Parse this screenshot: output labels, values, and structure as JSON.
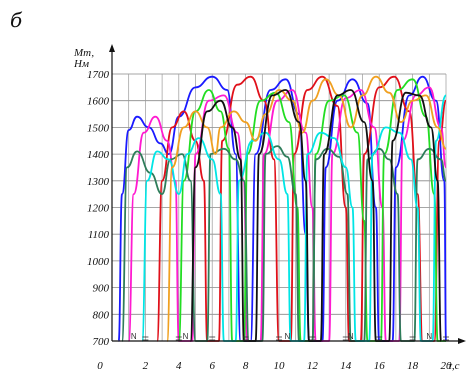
{
  "figure": {
    "letter": "б"
  },
  "chart_data": {
    "type": "line",
    "ylabel_line1": "Mт,",
    "ylabel_line2": "Нм",
    "xlabel": "τ,c",
    "xlim": [
      0,
      20
    ],
    "ylim": [
      700,
      1700
    ],
    "x_ticks": [
      0,
      2,
      4,
      6,
      8,
      10,
      12,
      14,
      16,
      18,
      20
    ],
    "x_tick_labels": [
      "0",
      "2",
      "4",
      "6",
      "8",
      "10",
      "12",
      "14",
      "16",
      "18",
      "20"
    ],
    "y_ticks": [
      700,
      800,
      900,
      1000,
      1100,
      1200,
      1300,
      1400,
      1500,
      1600,
      1700
    ],
    "y_tick_labels": [
      "700",
      "800",
      "900",
      "1000",
      "1100",
      "1200",
      "1300",
      "1400",
      "1500",
      "1600",
      "1700"
    ],
    "grid": true,
    "series_colors": [
      "#1a1aff",
      "#e0101a",
      "#ff1ad0",
      "#22dd22",
      "#2e7d5a",
      "#00e5e5",
      "#f0a020",
      "#111111"
    ],
    "n_markers": [
      {
        "label": "N",
        "x": 1.3
      },
      {
        "label": "N",
        "x": 4.4
      },
      {
        "label": "N",
        "x": 10.5
      },
      {
        "label": "N",
        "x": 14.3
      },
      {
        "label": "N",
        "x": 19.0
      }
    ],
    "series": [
      {
        "color": "#1a1aff",
        "points": [
          [
            0.4,
            700
          ],
          [
            0.6,
            1250
          ],
          [
            1.0,
            1490
          ],
          [
            1.5,
            1540
          ],
          [
            2.2,
            1500
          ],
          [
            2.9,
            1440
          ],
          [
            3.4,
            1400
          ],
          [
            4.0,
            1540
          ],
          [
            5.0,
            1650
          ],
          [
            6.0,
            1690
          ],
          [
            6.9,
            1640
          ],
          [
            7.4,
            1400
          ],
          [
            7.7,
            700
          ],
          [
            8.3,
            700
          ],
          [
            8.6,
            1400
          ],
          [
            9.5,
            1640
          ],
          [
            10.4,
            1680
          ],
          [
            11.2,
            1550
          ],
          [
            11.6,
            1100
          ],
          [
            11.8,
            700
          ],
          [
            12.6,
            700
          ],
          [
            12.8,
            1350
          ],
          [
            13.5,
            1600
          ],
          [
            14.4,
            1680
          ],
          [
            15.3,
            1590
          ],
          [
            15.8,
            1200
          ],
          [
            16.0,
            700
          ],
          [
            16.8,
            700
          ],
          [
            17.0,
            1350
          ],
          [
            17.8,
            1620
          ],
          [
            18.6,
            1690
          ],
          [
            19.4,
            1600
          ],
          [
            19.9,
            1300
          ],
          [
            20.0,
            700
          ]
        ]
      },
      {
        "color": "#e0101a",
        "points": [
          [
            2.7,
            700
          ],
          [
            3.0,
            1300
          ],
          [
            3.6,
            1500
          ],
          [
            4.3,
            1560
          ],
          [
            5.0,
            1450
          ],
          [
            5.5,
            1300
          ],
          [
            5.7,
            700
          ],
          [
            6.4,
            700
          ],
          [
            6.6,
            1450
          ],
          [
            7.5,
            1660
          ],
          [
            8.3,
            1690
          ],
          [
            9.1,
            1600
          ],
          [
            9.7,
            1380
          ],
          [
            10.0,
            700
          ],
          [
            10.7,
            700
          ],
          [
            10.9,
            1400
          ],
          [
            11.7,
            1640
          ],
          [
            12.6,
            1690
          ],
          [
            13.5,
            1580
          ],
          [
            14.0,
            1200
          ],
          [
            14.2,
            700
          ],
          [
            14.9,
            700
          ],
          [
            15.1,
            1400
          ],
          [
            16.0,
            1650
          ],
          [
            16.9,
            1690
          ],
          [
            17.8,
            1560
          ],
          [
            18.3,
            1250
          ],
          [
            18.6,
            700
          ],
          [
            19.3,
            700
          ],
          [
            19.6,
            1450
          ],
          [
            20.0,
            1600
          ]
        ]
      },
      {
        "color": "#ff1ad0",
        "points": [
          [
            1.0,
            700
          ],
          [
            1.3,
            1250
          ],
          [
            1.9,
            1480
          ],
          [
            2.6,
            1540
          ],
          [
            3.3,
            1450
          ],
          [
            3.8,
            1300
          ],
          [
            4.0,
            700
          ],
          [
            4.8,
            700
          ],
          [
            5.0,
            1400
          ],
          [
            5.8,
            1600
          ],
          [
            6.7,
            1620
          ],
          [
            7.5,
            1480
          ],
          [
            7.9,
            1300
          ],
          [
            8.1,
            700
          ],
          [
            8.9,
            700
          ],
          [
            9.1,
            1400
          ],
          [
            9.9,
            1600
          ],
          [
            10.8,
            1640
          ],
          [
            11.6,
            1480
          ],
          [
            12.0,
            1200
          ],
          [
            12.2,
            700
          ],
          [
            13.0,
            700
          ],
          [
            13.2,
            1400
          ],
          [
            14.0,
            1610
          ],
          [
            14.9,
            1640
          ],
          [
            15.7,
            1500
          ],
          [
            16.2,
            1200
          ],
          [
            16.4,
            700
          ],
          [
            17.2,
            700
          ],
          [
            17.4,
            1450
          ],
          [
            18.2,
            1620
          ],
          [
            19.0,
            1650
          ],
          [
            19.7,
            1500
          ],
          [
            20.0,
            1350
          ]
        ]
      },
      {
        "color": "#22dd22",
        "points": [
          [
            4.0,
            700
          ],
          [
            4.3,
            1300
          ],
          [
            5.0,
            1560
          ],
          [
            5.8,
            1640
          ],
          [
            6.5,
            1560
          ],
          [
            7.0,
            1420
          ],
          [
            7.2,
            700
          ],
          [
            7.9,
            700
          ],
          [
            8.1,
            1400
          ],
          [
            8.9,
            1600
          ],
          [
            9.8,
            1630
          ],
          [
            10.6,
            1520
          ],
          [
            11.1,
            1200
          ],
          [
            11.3,
            700
          ],
          [
            12.0,
            700
          ],
          [
            12.2,
            1400
          ],
          [
            13.0,
            1600
          ],
          [
            13.9,
            1620
          ],
          [
            14.7,
            1480
          ],
          [
            15.1,
            1150
          ],
          [
            15.3,
            700
          ],
          [
            16.1,
            700
          ],
          [
            16.3,
            1400
          ],
          [
            17.1,
            1640
          ],
          [
            18.0,
            1680
          ],
          [
            18.8,
            1540
          ],
          [
            19.3,
            1250
          ],
          [
            19.5,
            700
          ],
          [
            20.0,
            700
          ]
        ]
      },
      {
        "color": "#2e7d5a",
        "points": [
          [
            0.6,
            700
          ],
          [
            0.9,
            1350
          ],
          [
            1.5,
            1410
          ],
          [
            2.3,
            1330
          ],
          [
            3.0,
            1250
          ],
          [
            3.5,
            1380
          ],
          [
            4.2,
            1400
          ],
          [
            4.7,
            1300
          ],
          [
            5.0,
            700
          ],
          [
            5.7,
            700
          ],
          [
            5.9,
            1400
          ],
          [
            6.7,
            1420
          ],
          [
            7.4,
            1380
          ],
          [
            7.9,
            1300
          ],
          [
            8.2,
            700
          ],
          [
            9.0,
            700
          ],
          [
            9.2,
            1400
          ],
          [
            9.9,
            1430
          ],
          [
            10.5,
            1390
          ],
          [
            11.0,
            1250
          ],
          [
            11.2,
            700
          ],
          [
            12.0,
            700
          ],
          [
            12.2,
            1380
          ],
          [
            12.9,
            1420
          ],
          [
            13.6,
            1390
          ],
          [
            14.1,
            1250
          ],
          [
            14.3,
            700
          ],
          [
            15.1,
            700
          ],
          [
            15.3,
            1380
          ],
          [
            16.0,
            1420
          ],
          [
            16.6,
            1380
          ],
          [
            17.1,
            1250
          ],
          [
            17.3,
            700
          ],
          [
            18.1,
            700
          ],
          [
            18.3,
            1380
          ],
          [
            19.0,
            1420
          ],
          [
            19.7,
            1380
          ],
          [
            20.0,
            1300
          ]
        ]
      },
      {
        "color": "#00e5e5",
        "points": [
          [
            1.8,
            700
          ],
          [
            2.1,
            1300
          ],
          [
            2.7,
            1410
          ],
          [
            3.4,
            1380
          ],
          [
            4.0,
            1250
          ],
          [
            4.5,
            1400
          ],
          [
            5.2,
            1460
          ],
          [
            6.0,
            1380
          ],
          [
            6.5,
            1250
          ],
          [
            6.7,
            700
          ],
          [
            7.4,
            700
          ],
          [
            7.6,
            1300
          ],
          [
            8.4,
            1450
          ],
          [
            9.2,
            1480
          ],
          [
            10.0,
            1380
          ],
          [
            10.5,
            1250
          ],
          [
            10.7,
            700
          ],
          [
            11.5,
            700
          ],
          [
            11.7,
            1400
          ],
          [
            12.5,
            1480
          ],
          [
            13.3,
            1460
          ],
          [
            14.0,
            1350
          ],
          [
            14.4,
            1200
          ],
          [
            14.6,
            700
          ],
          [
            15.4,
            700
          ],
          [
            15.6,
            1400
          ],
          [
            16.4,
            1500
          ],
          [
            17.2,
            1480
          ],
          [
            17.9,
            1380
          ],
          [
            18.3,
            1200
          ],
          [
            18.5,
            700
          ],
          [
            19.2,
            700
          ],
          [
            19.4,
            1450
          ],
          [
            20.0,
            1620
          ]
        ]
      },
      {
        "color": "#f0a020",
        "points": [
          [
            3.3,
            700
          ],
          [
            3.6,
            1350
          ],
          [
            4.3,
            1500
          ],
          [
            5.0,
            1560
          ],
          [
            5.7,
            1500
          ],
          [
            6.2,
            1400
          ],
          [
            6.5,
            1500
          ],
          [
            7.3,
            1560
          ],
          [
            8.0,
            1520
          ],
          [
            8.6,
            1450
          ],
          [
            9.2,
            1550
          ],
          [
            10.0,
            1640
          ],
          [
            10.8,
            1600
          ],
          [
            11.4,
            1480
          ],
          [
            12.0,
            1600
          ],
          [
            12.8,
            1680
          ],
          [
            13.6,
            1620
          ],
          [
            14.3,
            1500
          ],
          [
            15.0,
            1620
          ],
          [
            15.8,
            1690
          ],
          [
            16.6,
            1630
          ],
          [
            17.3,
            1520
          ],
          [
            18.0,
            1600
          ],
          [
            18.8,
            1620
          ],
          [
            19.5,
            1500
          ],
          [
            20.0,
            1420
          ]
        ]
      },
      {
        "color": "#111111",
        "points": [
          [
            4.7,
            700
          ],
          [
            5.0,
            1350
          ],
          [
            5.7,
            1560
          ],
          [
            6.5,
            1600
          ],
          [
            7.2,
            1500
          ],
          [
            7.7,
            1380
          ],
          [
            7.9,
            700
          ],
          [
            8.6,
            700
          ],
          [
            8.8,
            1400
          ],
          [
            9.6,
            1620
          ],
          [
            10.4,
            1640
          ],
          [
            11.2,
            1520
          ],
          [
            11.6,
            1300
          ],
          [
            11.8,
            700
          ],
          [
            12.5,
            700
          ],
          [
            12.7,
            1400
          ],
          [
            13.5,
            1620
          ],
          [
            14.3,
            1640
          ],
          [
            15.1,
            1520
          ],
          [
            15.6,
            1300
          ],
          [
            15.8,
            700
          ],
          [
            16.6,
            700
          ],
          [
            16.8,
            1450
          ],
          [
            17.6,
            1630
          ],
          [
            18.4,
            1620
          ],
          [
            19.1,
            1500
          ],
          [
            19.5,
            1300
          ],
          [
            19.7,
            700
          ]
        ]
      }
    ]
  }
}
